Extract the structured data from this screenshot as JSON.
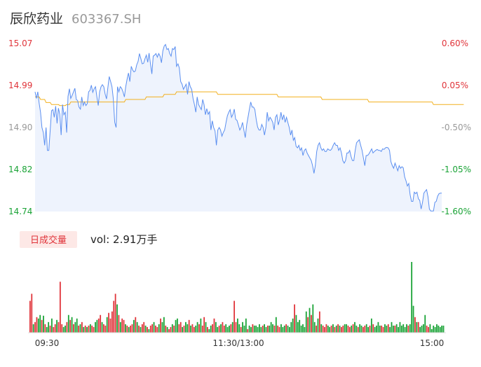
{
  "header": {
    "name": "辰欣药业",
    "code": "603367.SH"
  },
  "colors": {
    "up": "#e0343a",
    "down": "#1aa336",
    "neutral": "#999999",
    "price_line": "#5b8ff0",
    "avg_line": "#f2b01e",
    "area_fill": "#eef3fd"
  },
  "volume_legend": {
    "badge": "日成交量",
    "text": "vol: 2.91万手"
  },
  "chart_data": [
    {
      "type": "line",
      "title": "",
      "x_ticks": [
        "09:30",
        "11:30/13:00",
        "15:00"
      ],
      "y_left_ticks": [
        "15.07",
        "14.99",
        "14.90",
        "14.82",
        "14.74"
      ],
      "y_right_ticks": [
        "0.60%",
        "0.05%",
        "-0.50%",
        "-1.05%",
        "-1.60%"
      ],
      "ylim": [
        14.74,
        15.07
      ],
      "series": [
        {
          "values": [
            14.975,
            14.962,
            14.975,
            14.952,
            14.935,
            14.905,
            14.895,
            14.87,
            14.905,
            14.86,
            14.86,
            14.9,
            14.938,
            14.94,
            14.925,
            14.947,
            14.913,
            14.943,
            14.931,
            14.89,
            14.95,
            14.93,
            14.935,
            14.895,
            14.966,
            14.981,
            14.962,
            14.968,
            14.975,
            14.982,
            14.96,
            14.958,
            14.945,
            14.941,
            14.965,
            14.948,
            14.955,
            14.948,
            14.952,
            14.975,
            14.978,
            14.988,
            14.974,
            14.981,
            14.985,
            14.965,
            14.948,
            14.975,
            14.985,
            14.989,
            14.985,
            14.971,
            14.961,
            14.984,
            15.005,
            14.995,
            14.985,
            14.96,
            14.915,
            14.905,
            14.985,
            14.975,
            14.985,
            14.982,
            14.975,
            14.965,
            14.985,
            15.0,
            15.012,
            14.995,
            15.025,
            15.018,
            15.014,
            15.016,
            15.028,
            15.035,
            15.05,
            15.04,
            15.03,
            15.031,
            15.04,
            15.047,
            15.033,
            15.051,
            15.03,
            15.01,
            15.045,
            15.047,
            15.05,
            15.043,
            15.05,
            15.045,
            15.032,
            15.055,
            15.065,
            15.068,
            15.058,
            15.06,
            15.05,
            15.045,
            15.06,
            15.058,
            15.064,
            15.025,
            15.03,
            15.022,
            14.995,
            14.99,
            14.98,
            14.985,
            14.99,
            14.97,
            14.995,
            14.985,
            14.98,
            14.962,
            14.95,
            14.935,
            14.965,
            14.95,
            14.945,
            14.94,
            14.96,
            14.95,
            14.93,
            14.942,
            14.931,
            14.936,
            14.9,
            14.918,
            14.905,
            14.898,
            14.87,
            14.9,
            14.905,
            14.9,
            14.888,
            14.895,
            14.9,
            14.915,
            14.928,
            14.935,
            14.94,
            14.925,
            14.931,
            14.941,
            14.921,
            14.919,
            14.91,
            14.9,
            14.905,
            14.915,
            14.9,
            14.885,
            14.91,
            14.925,
            14.941,
            14.955,
            14.945,
            14.945,
            14.94,
            14.92,
            14.906,
            14.9,
            14.9,
            14.911,
            14.905,
            14.89,
            14.905,
            14.935,
            14.918,
            14.925,
            14.921,
            14.915,
            14.9,
            14.925,
            14.93,
            14.91,
            14.92,
            14.935,
            14.92,
            14.93,
            14.915,
            14.925,
            14.915,
            14.905,
            14.89,
            14.9,
            14.88,
            14.885,
            14.868,
            14.865,
            14.87,
            14.86,
            14.865,
            14.85,
            14.86,
            14.863,
            14.855,
            14.85,
            14.845,
            14.84,
            14.83,
            14.815,
            14.83,
            14.858,
            14.87,
            14.875,
            14.865,
            14.86,
            14.863,
            14.858,
            14.858,
            14.863,
            14.861,
            14.86,
            14.863,
            14.87,
            14.875,
            14.87,
            14.87,
            14.86,
            14.865,
            14.855,
            14.84,
            14.835,
            14.84,
            14.855,
            14.855,
            14.86,
            14.848,
            14.84,
            14.84,
            14.86,
            14.875,
            14.878,
            14.881,
            14.87,
            14.86,
            14.845,
            14.83,
            14.85,
            14.85,
            14.853,
            14.858,
            14.863,
            14.855,
            14.858,
            14.86,
            14.862,
            14.86,
            14.86,
            14.858,
            14.863,
            14.862,
            14.865,
            14.866,
            14.865,
            14.86,
            14.838,
            14.83,
            14.825,
            14.835,
            14.828,
            14.82,
            14.83,
            14.825,
            14.828,
            14.826,
            14.808,
            14.8,
            14.79,
            14.795,
            14.773,
            14.76,
            14.76,
            14.778,
            14.775,
            14.778,
            14.765,
            14.762,
            14.745,
            14.758,
            14.776,
            14.78,
            14.783,
            14.769,
            14.745,
            14.741,
            14.741,
            14.741,
            14.758,
            14.76,
            14.77,
            14.775,
            14.776,
            14.776
          ]
        },
        {
          "values": [
            14.965,
            14.965,
            14.965,
            14.965,
            14.96,
            14.96,
            14.96,
            14.96,
            14.954,
            14.954,
            14.954,
            14.954,
            14.95,
            14.95,
            14.95,
            14.95,
            14.95,
            14.95,
            14.948,
            14.948,
            14.948,
            14.948,
            14.948,
            14.95,
            14.95,
            14.95,
            14.955,
            14.955,
            14.955,
            14.955,
            14.955,
            14.955,
            14.955,
            14.955,
            14.955,
            14.955,
            14.955,
            14.955,
            14.955,
            14.955,
            14.955,
            14.955,
            14.955,
            14.955,
            14.955,
            14.955,
            14.955,
            14.955,
            14.955,
            14.955,
            14.955,
            14.955,
            14.955,
            14.955,
            14.955,
            14.955,
            14.955,
            14.955,
            14.955,
            14.955,
            14.955,
            14.955,
            14.955,
            14.955,
            14.955,
            14.955,
            14.96,
            14.96,
            14.96,
            14.96,
            14.96,
            14.96,
            14.96,
            14.96,
            14.96,
            14.96,
            14.96,
            14.96,
            14.96,
            14.96,
            14.96,
            14.965,
            14.965,
            14.965,
            14.965,
            14.965,
            14.965,
            14.965,
            14.965,
            14.965,
            14.965,
            14.965,
            14.965,
            14.965,
            14.97,
            14.97,
            14.97,
            14.97,
            14.97,
            14.97,
            14.97,
            14.97,
            14.97,
            14.975,
            14.975,
            14.975,
            14.975,
            14.975,
            14.975,
            14.975,
            14.975,
            14.975,
            14.975,
            14.975,
            14.975,
            14.975,
            14.975,
            14.975,
            14.975,
            14.975,
            14.975,
            14.975,
            14.975,
            14.975,
            14.975,
            14.975,
            14.975,
            14.975,
            14.975,
            14.975,
            14.975,
            14.975,
            14.975,
            14.97,
            14.97,
            14.97,
            14.97,
            14.97,
            14.97,
            14.97,
            14.97,
            14.97,
            14.97,
            14.97,
            14.97,
            14.97,
            14.97,
            14.97,
            14.97,
            14.97,
            14.97,
            14.97,
            14.97,
            14.97,
            14.97,
            14.97,
            14.97,
            14.97,
            14.97,
            14.97,
            14.97,
            14.97,
            14.97,
            14.97,
            14.97,
            14.97,
            14.97,
            14.97,
            14.97,
            14.97,
            14.97,
            14.97,
            14.97,
            14.97,
            14.97,
            14.97,
            14.97,
            14.965,
            14.965,
            14.965,
            14.965,
            14.965,
            14.965,
            14.965,
            14.965,
            14.965,
            14.965,
            14.965,
            14.965,
            14.965,
            14.965,
            14.965,
            14.965,
            14.965,
            14.965,
            14.965,
            14.965,
            14.965,
            14.965,
            14.965,
            14.965,
            14.965,
            14.965,
            14.965,
            14.965,
            14.965,
            14.965,
            14.965,
            14.965,
            14.96,
            14.96,
            14.96,
            14.96,
            14.96,
            14.96,
            14.96,
            14.96,
            14.96,
            14.96,
            14.96,
            14.96,
            14.96,
            14.96,
            14.96,
            14.96,
            14.96,
            14.96,
            14.96,
            14.96,
            14.96,
            14.96,
            14.96,
            14.96,
            14.96,
            14.96,
            14.96,
            14.96,
            14.96,
            14.96,
            14.96,
            14.96,
            14.96,
            14.96,
            14.955,
            14.955,
            14.955,
            14.955,
            14.955,
            14.955,
            14.955,
            14.955,
            14.955,
            14.955,
            14.955,
            14.955,
            14.955,
            14.955,
            14.955,
            14.955,
            14.955,
            14.955,
            14.955,
            14.955,
            14.955,
            14.955,
            14.955,
            14.955,
            14.955,
            14.955,
            14.955,
            14.955,
            14.955,
            14.955,
            14.955,
            14.955,
            14.955,
            14.955,
            14.955,
            14.955,
            14.955,
            14.955,
            14.955,
            14.955,
            14.955,
            14.955,
            14.955,
            14.955,
            14.955,
            14.955,
            14.955,
            14.95,
            14.95,
            14.95,
            14.95,
            14.95,
            14.95,
            14.95,
            14.95,
            14.95,
            14.95,
            14.95,
            14.95,
            14.95,
            14.95,
            14.95,
            14.95,
            14.95,
            14.95,
            14.95,
            14.95,
            14.95,
            14.95,
            14.95
          ]
        }
      ]
    },
    {
      "type": "bar",
      "title": "",
      "ylim": [
        0,
        100
      ],
      "values": [
        45,
        55,
        12,
        15,
        22,
        20,
        25,
        18,
        24,
        12,
        8,
        15,
        10,
        20,
        8,
        12,
        18,
        15,
        72,
        12,
        8,
        10,
        15,
        25,
        18,
        22,
        12,
        15,
        20,
        10,
        12,
        15,
        8,
        10,
        8,
        10,
        12,
        10,
        8,
        15,
        18,
        20,
        25,
        15,
        12,
        10,
        22,
        28,
        20,
        30,
        45,
        55,
        40,
        25,
        15,
        20,
        18,
        12,
        10,
        8,
        10,
        12,
        18,
        22,
        15,
        10,
        8,
        12,
        15,
        10,
        8,
        5,
        10,
        12,
        15,
        10,
        8,
        12,
        20,
        15,
        22,
        10,
        8,
        5,
        8,
        12,
        10,
        18,
        20,
        12,
        15,
        8,
        10,
        15,
        12,
        18,
        10,
        12,
        8,
        10,
        15,
        12,
        20,
        10,
        22,
        15,
        8,
        5,
        10,
        12,
        20,
        15,
        8,
        10,
        12,
        15,
        10,
        12,
        8,
        10,
        12,
        15,
        45,
        15,
        20,
        12,
        8,
        15,
        10,
        20,
        5,
        10,
        8,
        12,
        10,
        10,
        8,
        12,
        8,
        10,
        12,
        8,
        10,
        10,
        15,
        12,
        10,
        22,
        10,
        8,
        12,
        8,
        10,
        12,
        10,
        8,
        15,
        20,
        40,
        25,
        15,
        18,
        10,
        12,
        8,
        30,
        22,
        35,
        25,
        40,
        15,
        10,
        20,
        30,
        12,
        10,
        8,
        12,
        10,
        8,
        10,
        12,
        8,
        10,
        12,
        10,
        8,
        10,
        12,
        12,
        10,
        8,
        10,
        12,
        15,
        10,
        8,
        12,
        10,
        8,
        10,
        12,
        8,
        10,
        20,
        12,
        8,
        10,
        15,
        10,
        10,
        8,
        12,
        10,
        12,
        8,
        15,
        10,
        10,
        12,
        8,
        15,
        10,
        12,
        8,
        12,
        10,
        12,
        100,
        38,
        22,
        15,
        15,
        8,
        10,
        12,
        25,
        10,
        8,
        12,
        5,
        10,
        8,
        12,
        10,
        8,
        10,
        10
      ],
      "direction": [
        1,
        1,
        -1,
        1,
        1,
        -1,
        -1,
        1,
        -1,
        1,
        -1,
        -1,
        1,
        -1,
        1,
        1,
        -1,
        1,
        1,
        1,
        -1,
        -1,
        1,
        -1,
        1,
        -1,
        1,
        -1,
        -1,
        1,
        -1,
        1,
        -1,
        1,
        -1,
        1,
        -1,
        1,
        1,
        -1,
        -1,
        1,
        1,
        -1,
        1,
        1,
        -1,
        1,
        1,
        1,
        1,
        1,
        -1,
        1,
        -1,
        1,
        1,
        -1,
        1,
        -1,
        1,
        1,
        -1,
        1,
        -1,
        1,
        -1,
        1,
        1,
        -1,
        1,
        -1,
        1,
        1,
        -1,
        1,
        1,
        -1,
        1,
        -1,
        -1,
        1,
        -1,
        1,
        1,
        -1,
        1,
        -1,
        -1,
        1,
        1,
        -1,
        1,
        -1,
        -1,
        1,
        -1,
        1,
        1,
        -1,
        -1,
        1,
        -1,
        1,
        1,
        -1,
        1,
        -1,
        -1,
        1,
        1,
        -1,
        -1,
        1,
        -1,
        1,
        1,
        -1,
        -1,
        -1,
        1,
        -1,
        1,
        1,
        -1,
        -1,
        1,
        -1,
        -1,
        -1,
        1,
        -1,
        -1,
        1,
        -1,
        -1,
        -1,
        -1,
        -1,
        1,
        -1,
        -1,
        1,
        -1,
        -1,
        -1,
        1,
        -1,
        1,
        1,
        -1,
        -1,
        -1,
        1,
        -1,
        -1,
        -1,
        -1,
        1,
        -1,
        -1,
        -1,
        -1,
        -1,
        -1,
        -1,
        1,
        -1,
        1,
        -1,
        -1,
        1,
        -1,
        1,
        -1,
        1,
        1,
        1,
        -1,
        -1,
        1,
        -1,
        1,
        -1,
        1,
        -1,
        1,
        1,
        -1,
        -1,
        1,
        1,
        -1,
        1,
        -1,
        -1,
        1,
        -1,
        -1,
        1,
        1,
        -1,
        -1,
        1,
        -1,
        1,
        -1,
        -1,
        -1,
        -1,
        1,
        1,
        -1,
        -1,
        1,
        -1,
        -1,
        -1,
        1,
        -1,
        -1,
        -1,
        -1,
        -1,
        -1,
        -1,
        1,
        -1,
        -1,
        -1,
        1,
        -1,
        1,
        -1,
        -1,
        -1,
        -1,
        1,
        1,
        -1
      ]
    }
  ]
}
